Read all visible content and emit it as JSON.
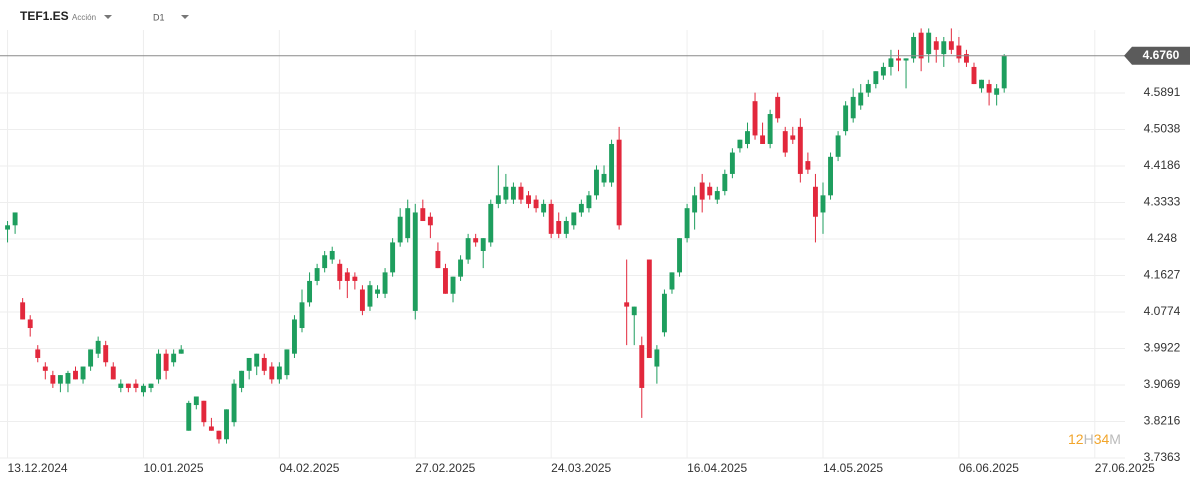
{
  "chart_data": {
    "type": "candlestick",
    "symbol": "TEF1.ES",
    "instrument_type": "Acción",
    "timeframe": "D1",
    "countdown": {
      "hours": "12",
      "hours_unit": "H",
      "minutes": "34",
      "minutes_unit": "M"
    },
    "last_price": {
      "value": 4.676,
      "label": "4.6760"
    },
    "up_color": "#1e9e5e",
    "down_color": "#e2283c",
    "xlim": [
      -1,
      148
    ],
    "xticks": [
      {
        "value": 0,
        "label": "13.12.2024"
      },
      {
        "value": 18,
        "label": "10.01.2025"
      },
      {
        "value": 36,
        "label": "04.02.2025"
      },
      {
        "value": 54,
        "label": "27.02.2025"
      },
      {
        "value": 72,
        "label": "24.03.2025"
      },
      {
        "value": 90,
        "label": "16.04.2025"
      },
      {
        "value": 108,
        "label": "14.05.2025"
      },
      {
        "value": 126,
        "label": "06.06.2025"
      },
      {
        "value": 144,
        "label": "27.06.2025"
      }
    ],
    "ylim": [
      3.7363,
      4.8064
    ],
    "yticks": [
      4.5891,
      4.5038,
      4.4186,
      4.3333,
      4.248,
      4.1627,
      4.0774,
      3.9922,
      3.9069,
      3.8216,
      3.7363
    ],
    "grid": true,
    "open": [
      4.27,
      4.28,
      4.1,
      4.06,
      3.99,
      3.95,
      3.93,
      3.91,
      3.91,
      3.94,
      3.92,
      3.95,
      3.98,
      4.0,
      3.95,
      3.9,
      3.91,
      3.91,
      3.89,
      3.9,
      3.92,
      3.98,
      3.96,
      3.98,
      3.8,
      3.86,
      3.87,
      3.81,
      3.8,
      3.78,
      3.82,
      3.9,
      3.94,
      3.95,
      3.97,
      3.95,
      3.92,
      3.93,
      3.98,
      4.04,
      4.1,
      4.15,
      4.18,
      4.2,
      4.19,
      4.17,
      4.16,
      4.13,
      4.09,
      4.12,
      4.12,
      4.17,
      4.24,
      4.25,
      4.08,
      4.32,
      4.3,
      4.22,
      4.18,
      4.12,
      4.16,
      4.2,
      4.25,
      4.22,
      4.24,
      4.33,
      4.34,
      4.34,
      4.37,
      4.35,
      4.34,
      4.31,
      4.33,
      4.29,
      4.26,
      4.28,
      4.31,
      4.32,
      4.35,
      4.38,
      4.38,
      4.48,
      4.1,
      4.07,
      4.0,
      4.2,
      3.95,
      4.03,
      4.13,
      4.17,
      4.25,
      4.31,
      4.38,
      4.37,
      4.34,
      4.36,
      4.4,
      4.46,
      4.47,
      4.57,
      4.49,
      4.47,
      4.58,
      4.5,
      4.49,
      4.51,
      4.43,
      4.37,
      4.31,
      4.35,
      4.44,
      4.5,
      4.53,
      4.56,
      4.59,
      4.61,
      4.63,
      4.65,
      4.67,
      4.665,
      4.67,
      4.73,
      4.68,
      4.71,
      4.68,
      4.71,
      4.7,
      4.68,
      4.65,
      4.6,
      4.61,
      4.585,
      4.6
    ],
    "high": [
      4.29,
      4.31,
      4.11,
      4.07,
      4.0,
      3.96,
      3.94,
      3.93,
      3.94,
      3.95,
      3.95,
      3.99,
      4.02,
      4.01,
      3.96,
      3.92,
      3.91,
      3.92,
      3.91,
      3.91,
      3.99,
      3.99,
      3.99,
      4.0,
      3.87,
      3.88,
      3.87,
      3.83,
      3.8,
      3.85,
      3.92,
      3.94,
      3.97,
      3.98,
      3.98,
      3.96,
      3.96,
      3.99,
      4.07,
      4.13,
      4.17,
      4.19,
      4.22,
      4.23,
      4.2,
      4.18,
      4.17,
      4.14,
      4.15,
      4.14,
      4.18,
      4.25,
      4.32,
      4.34,
      4.33,
      4.34,
      4.31,
      4.24,
      4.19,
      4.16,
      4.21,
      4.26,
      4.26,
      4.25,
      4.34,
      4.42,
      4.4,
      4.38,
      4.38,
      4.36,
      4.35,
      4.34,
      4.34,
      4.31,
      4.3,
      4.31,
      4.34,
      4.36,
      4.42,
      4.42,
      4.48,
      4.51,
      4.2,
      4.09,
      4.02,
      4.2,
      4.0,
      4.13,
      4.17,
      4.25,
      4.33,
      4.37,
      4.4,
      4.38,
      4.37,
      4.41,
      4.46,
      4.48,
      4.52,
      4.59,
      4.52,
      4.55,
      4.59,
      4.51,
      4.51,
      4.53,
      4.45,
      4.4,
      4.38,
      4.45,
      4.5,
      4.57,
      4.6,
      4.61,
      4.62,
      4.64,
      4.66,
      4.69,
      4.69,
      4.67,
      4.73,
      4.74,
      4.74,
      4.72,
      4.72,
      4.74,
      4.72,
      4.69,
      4.66,
      4.62,
      4.62,
      4.61,
      4.68
    ],
    "low": [
      4.24,
      4.26,
      4.06,
      4.02,
      3.96,
      3.92,
      3.9,
      3.89,
      3.89,
      3.92,
      3.91,
      3.94,
      3.97,
      3.95,
      3.92,
      3.89,
      3.89,
      3.89,
      3.88,
      3.89,
      3.91,
      3.92,
      3.95,
      3.98,
      3.8,
      3.85,
      3.81,
      3.8,
      3.77,
      3.77,
      3.81,
      3.89,
      3.92,
      3.93,
      3.93,
      3.91,
      3.91,
      3.92,
      3.97,
      4.03,
      4.09,
      4.14,
      4.17,
      4.19,
      4.13,
      4.11,
      4.13,
      4.07,
      4.08,
      4.11,
      4.11,
      4.16,
      4.23,
      4.24,
      4.06,
      4.29,
      4.25,
      4.18,
      4.12,
      4.1,
      4.15,
      4.19,
      4.23,
      4.18,
      4.23,
      4.32,
      4.33,
      4.33,
      4.33,
      4.32,
      4.31,
      4.3,
      4.25,
      4.25,
      4.25,
      4.27,
      4.3,
      4.31,
      4.34,
      4.37,
      4.37,
      4.27,
      4.0,
      4.0,
      3.83,
      3.97,
      3.91,
      4.02,
      4.12,
      4.16,
      4.24,
      4.27,
      4.31,
      4.34,
      4.33,
      4.35,
      4.39,
      4.45,
      4.46,
      4.48,
      4.47,
      4.46,
      4.52,
      4.44,
      4.47,
      4.38,
      4.4,
      4.24,
      4.26,
      4.34,
      4.43,
      4.49,
      4.52,
      4.55,
      4.58,
      4.6,
      4.62,
      4.63,
      4.64,
      4.6,
      4.66,
      4.64,
      4.66,
      4.66,
      4.65,
      4.68,
      4.66,
      4.65,
      4.61,
      4.59,
      4.56,
      4.56,
      4.59
    ],
    "close": [
      4.28,
      4.31,
      4.06,
      4.04,
      3.97,
      3.94,
      3.91,
      3.93,
      3.935,
      3.92,
      3.95,
      3.99,
      4.01,
      3.96,
      3.92,
      3.91,
      3.9,
      3.9,
      3.905,
      3.91,
      3.98,
      3.94,
      3.98,
      3.99,
      3.865,
      3.88,
      3.82,
      3.8,
      3.78,
      3.85,
      3.91,
      3.94,
      3.97,
      3.98,
      3.94,
      3.92,
      3.95,
      3.99,
      4.06,
      4.1,
      4.15,
      4.18,
      4.21,
      4.22,
      4.15,
      4.15,
      4.15,
      4.08,
      4.14,
      4.13,
      4.17,
      4.24,
      4.3,
      4.32,
      4.31,
      4.29,
      4.28,
      4.18,
      4.12,
      4.16,
      4.2,
      4.25,
      4.24,
      4.25,
      4.33,
      4.35,
      4.37,
      4.37,
      4.34,
      4.33,
      4.32,
      4.33,
      4.26,
      4.26,
      4.29,
      4.31,
      4.33,
      4.35,
      4.41,
      4.4,
      4.47,
      4.28,
      4.09,
      4.09,
      3.9,
      3.97,
      3.99,
      4.12,
      4.17,
      4.25,
      4.32,
      4.35,
      4.34,
      4.35,
      4.36,
      4.4,
      4.45,
      4.48,
      4.5,
      4.49,
      4.47,
      4.54,
      4.53,
      4.45,
      4.48,
      4.4,
      4.41,
      4.3,
      4.35,
      4.44,
      4.49,
      4.56,
      4.58,
      4.59,
      4.61,
      4.64,
      4.65,
      4.67,
      4.665,
      4.67,
      4.72,
      4.67,
      4.73,
      4.69,
      4.71,
      4.69,
      4.67,
      4.66,
      4.61,
      4.62,
      4.59,
      4.6,
      4.676
    ]
  }
}
